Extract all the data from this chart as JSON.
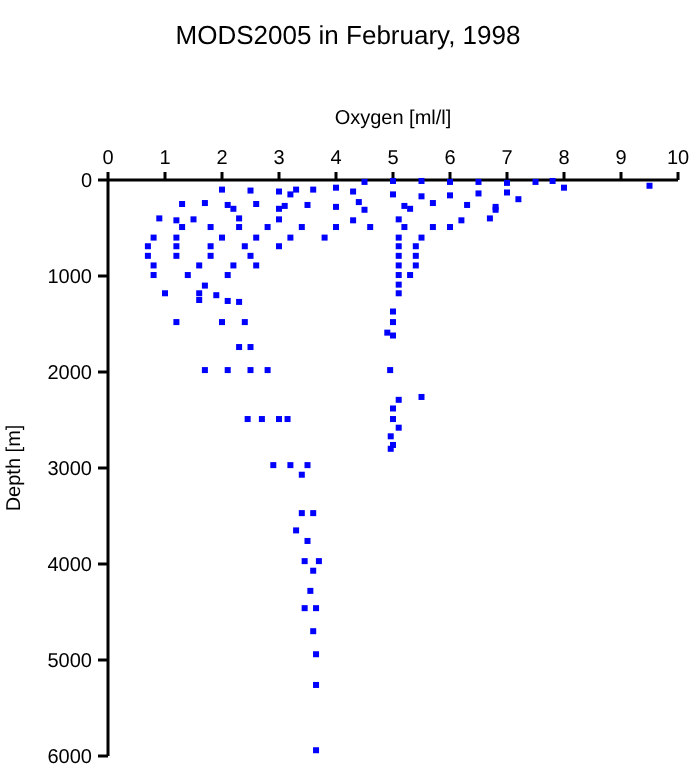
{
  "chart_data": {
    "type": "scatter",
    "title": "MODS2005 in February, 1998",
    "xlabel": "Oxygen [ml/l]",
    "ylabel": "Depth [m]",
    "xlim": [
      0,
      10
    ],
    "xticks": [
      0,
      1,
      2,
      3,
      4,
      5,
      6,
      7,
      8,
      9,
      10
    ],
    "ylim": [
      6000,
      0
    ],
    "yticks": [
      0,
      1000,
      2000,
      3000,
      4000,
      5000,
      6000
    ],
    "grid": false,
    "marker": "square",
    "series": [
      {
        "color": "#0000ff",
        "x": [
          4.5,
          5,
          5.5,
          6,
          6.5,
          7,
          7.5,
          7.8,
          8,
          9.5,
          3.2,
          3.6,
          4,
          4.3,
          5,
          5.5,
          6,
          6.5,
          7,
          7.2,
          2,
          2.5,
          3,
          3.3,
          1.3,
          1.7,
          2.1,
          2.6,
          3.1,
          3.5,
          4,
          4.4,
          5.2,
          5.7,
          6.3,
          6.8,
          2.2,
          3,
          4.5,
          5.3,
          6.8,
          0.9,
          1.2,
          1.5,
          2.3,
          3,
          4.3,
          5.1,
          6.2,
          6.7,
          1.3,
          1.8,
          2.3,
          2.8,
          3.4,
          4,
          4.6,
          5.2,
          5.7,
          6,
          0.8,
          1.2,
          2,
          2.6,
          3.2,
          3.8,
          5.1,
          5.5,
          0.7,
          1.2,
          1.8,
          2.4,
          3,
          5.1,
          5.4,
          0.7,
          1.2,
          1.8,
          2.5,
          5.1,
          5.4,
          0.8,
          1.6,
          2.2,
          2.6,
          5.1,
          5.4,
          0.8,
          1.4,
          2.1,
          5.1,
          5.3,
          1.7,
          5.1,
          1,
          1.6,
          1.9,
          5.1,
          1.6,
          2.1,
          2.3,
          5,
          1.2,
          2,
          2.4,
          5,
          4.9,
          5,
          2.3,
          2.5,
          1.7,
          2.1,
          2.5,
          2.8,
          4.95,
          5.5,
          5.1,
          5,
          2.45,
          2.7,
          3,
          3.15,
          5,
          5.1,
          4.96,
          5,
          4.96,
          2.9,
          3.2,
          3.5,
          3.4,
          3.4,
          3.6,
          3.3,
          3.5,
          3.45,
          3.7,
          3.6,
          3.55,
          3.45,
          3.65,
          3.6,
          3.65,
          3.65,
          3.65
        ],
        "values": [
          20,
          10,
          10,
          20,
          20,
          30,
          20,
          10,
          80,
          60,
          150,
          100,
          80,
          120,
          150,
          170,
          160,
          140,
          130,
          200,
          100,
          110,
          120,
          100,
          250,
          240,
          260,
          250,
          270,
          260,
          280,
          230,
          270,
          240,
          260,
          280,
          300,
          300,
          310,
          300,
          310,
          400,
          420,
          410,
          400,
          410,
          420,
          410,
          420,
          400,
          490,
          490,
          490,
          490,
          490,
          490,
          490,
          490,
          490,
          490,
          600,
          600,
          600,
          600,
          600,
          600,
          600,
          600,
          690,
          690,
          690,
          690,
          690,
          690,
          690,
          790,
          790,
          790,
          790,
          790,
          790,
          890,
          890,
          890,
          890,
          890,
          890,
          990,
          990,
          990,
          990,
          990,
          1100,
          1090,
          1180,
          1180,
          1200,
          1180,
          1250,
          1260,
          1270,
          1370,
          1480,
          1480,
          1480,
          1480,
          1590,
          1620,
          1740,
          1740,
          1980,
          1980,
          1980,
          1980,
          1980,
          2260,
          2290,
          2380,
          2490,
          2490,
          2490,
          2490,
          2490,
          2580,
          2670,
          2760,
          2800,
          2970,
          2970,
          2970,
          3070,
          3470,
          3470,
          3650,
          3760,
          3970,
          3970,
          4070,
          4280,
          4460,
          4460,
          4700,
          4940,
          5260,
          5940
        ]
      }
    ]
  }
}
